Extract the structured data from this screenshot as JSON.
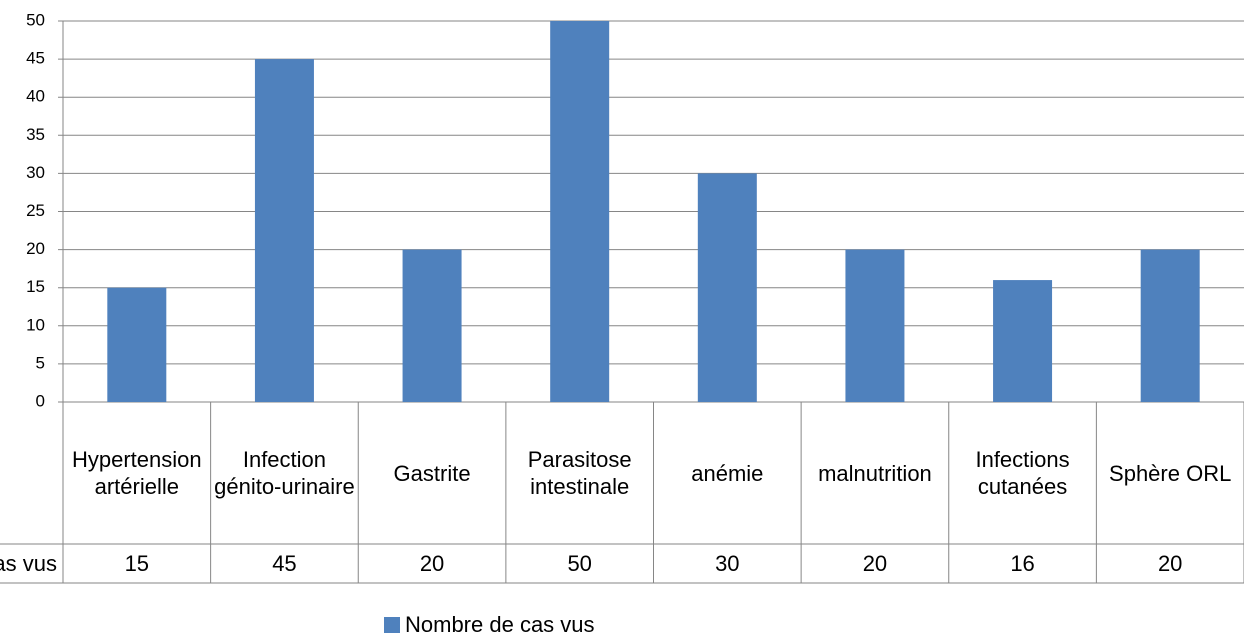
{
  "chart_data": {
    "type": "bar",
    "categories": [
      "Hypertension artérielle",
      "Infection génito-urinaire",
      "Gastrite",
      "Parasitose intestinale",
      "anémie",
      "malnutrition",
      "Infections cutanées",
      "Sphère ORL"
    ],
    "series": [
      {
        "name": "Nombre de cas vus",
        "color": "#4f81bd",
        "values": [
          15,
          45,
          20,
          50,
          30,
          20,
          16,
          20
        ]
      }
    ],
    "ylim": [
      0,
      50
    ],
    "yticks": [
      0,
      5,
      10,
      15,
      20,
      25,
      30,
      35,
      40,
      45,
      50
    ],
    "grid": true,
    "legend": "bottom",
    "data_table": true
  }
}
